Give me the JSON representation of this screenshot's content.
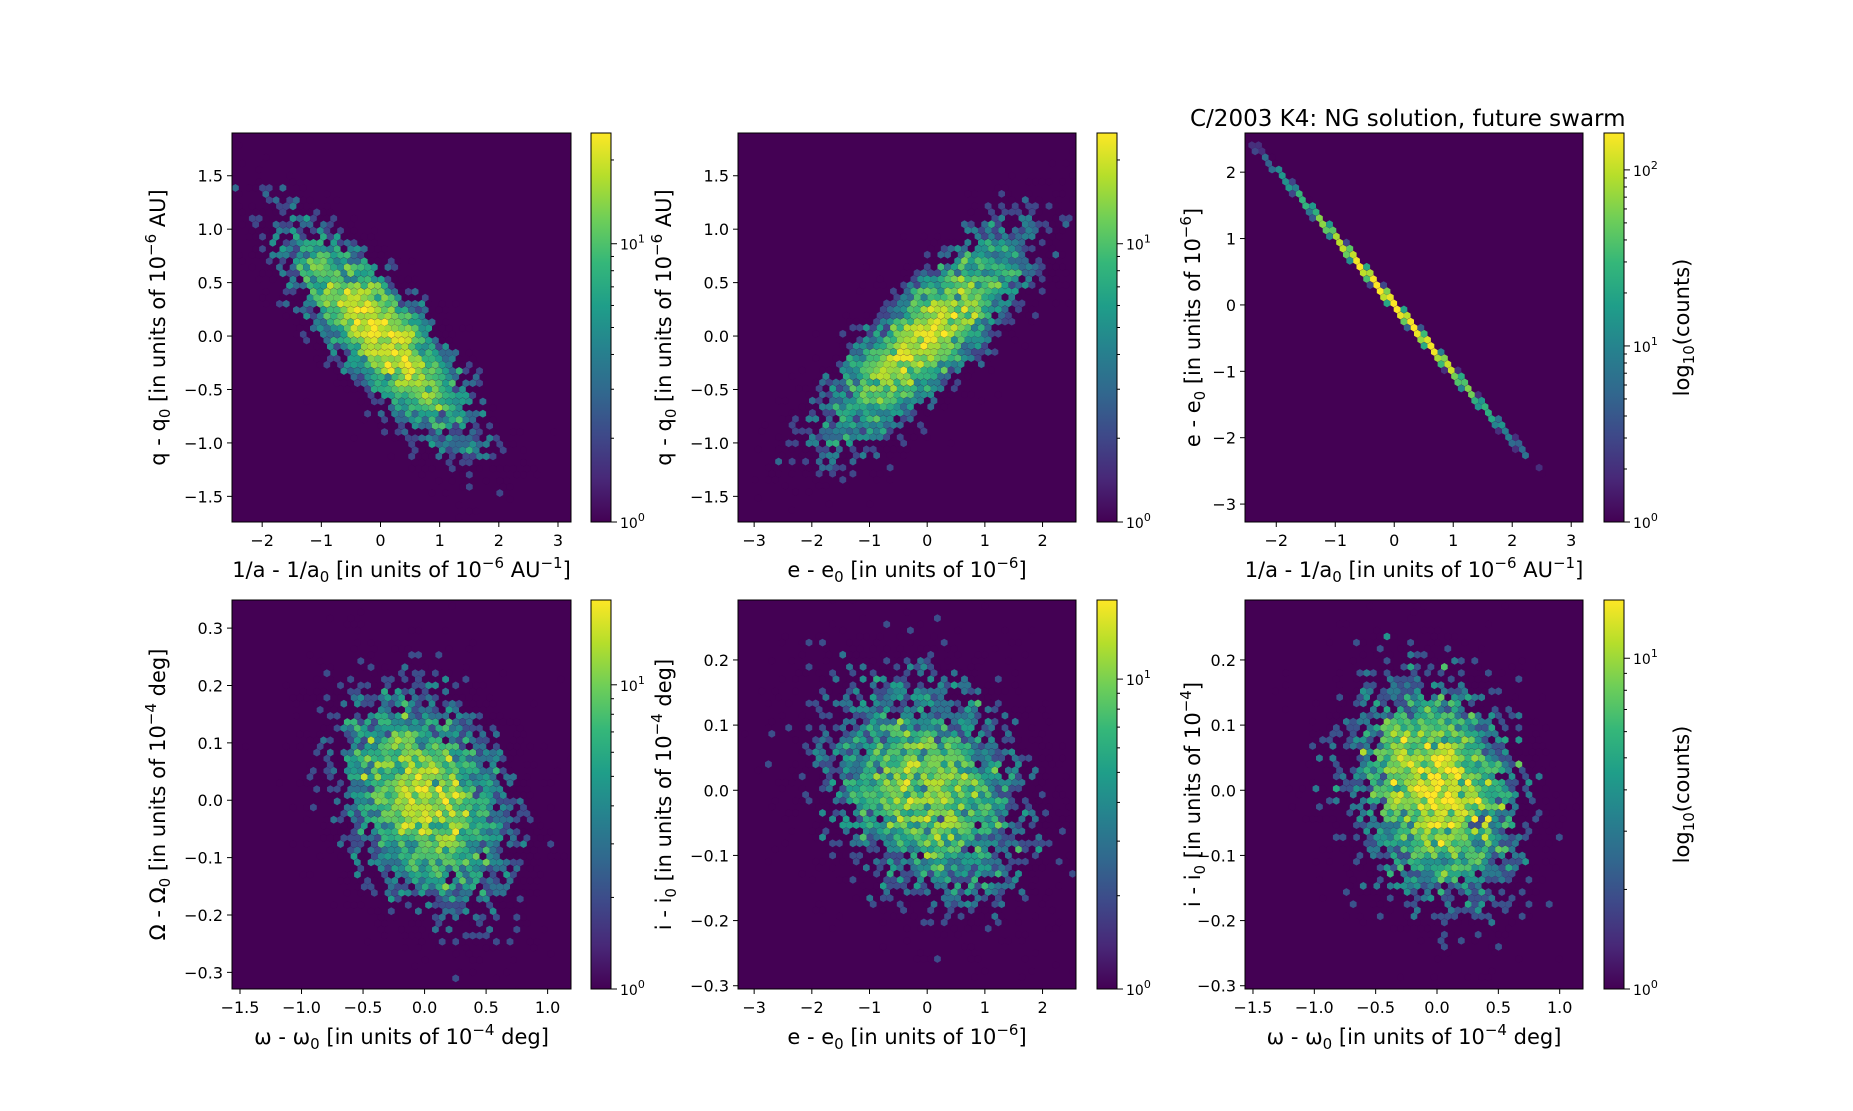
{
  "figure_title": "C/2003 K4:  NG solution, future swarm",
  "chart_data": [
    {
      "type": "hexbin",
      "panel": "top-left",
      "xlabel": {
        "main": "1/a - 1/a",
        "sub": "0",
        "rest": " [in units of 10",
        "sup": "−6",
        "tail": " AU",
        "sup2": "−1",
        "end": "]"
      },
      "ylabel": {
        "main": "q - q",
        "sub": "0",
        "rest": " [in units of 10",
        "sup": "−6",
        "tail": " AU]"
      },
      "xlim": [
        -2.51,
        3.22
      ],
      "ylim": [
        -1.74,
        1.9
      ],
      "xticks": [
        -2,
        -1,
        0,
        1,
        2,
        3
      ],
      "xticklabels": [
        "−2",
        "−1",
        "0",
        "1",
        "2",
        "3"
      ],
      "yticks": [
        -1.5,
        -1.0,
        -0.5,
        0.0,
        0.5,
        1.0,
        1.5
      ],
      "yticklabels": [
        "−1.5",
        "−1.0",
        "−0.5",
        "0.0",
        "0.5",
        "1.0",
        "1.5"
      ],
      "distribution": {
        "mean": [
          0,
          0
        ],
        "sigma": [
          0.8,
          0.52
        ],
        "correlation": -0.82,
        "samples": 5000
      },
      "colorbar": {
        "scale": "log",
        "min": 1,
        "max": 25,
        "ticks": [
          1,
          10
        ],
        "ticklabels": [
          "10^0",
          "10^1"
        ],
        "label": ""
      }
    },
    {
      "type": "hexbin",
      "panel": "top-middle",
      "xlabel": {
        "main": "e - e",
        "sub": "0",
        "rest": " [in units of 10",
        "sup": "−6",
        "end": "]"
      },
      "ylabel": {
        "main": "q - q",
        "sub": "0",
        "rest": " [in units of 10",
        "sup": "−6",
        "tail": " AU]"
      },
      "xlim": [
        -3.28,
        2.58
      ],
      "ylim": [
        -1.74,
        1.9
      ],
      "xticks": [
        -3,
        -2,
        -1,
        0,
        1,
        2
      ],
      "xticklabels": [
        "−3",
        "−2",
        "−1",
        "0",
        "1",
        "2"
      ],
      "yticks": [
        -1.5,
        -1.0,
        -0.5,
        0.0,
        0.5,
        1.0,
        1.5
      ],
      "yticklabels": [
        "−1.5",
        "−1.0",
        "−0.5",
        "0.0",
        "0.5",
        "1.0",
        "1.5"
      ],
      "distribution": {
        "mean": [
          0,
          0
        ],
        "sigma": [
          0.92,
          0.52
        ],
        "correlation": 0.82,
        "samples": 5000
      },
      "colorbar": {
        "scale": "log",
        "min": 1,
        "max": 25,
        "ticks": [
          1,
          10
        ],
        "ticklabels": [
          "10^0",
          "10^1"
        ],
        "label": ""
      }
    },
    {
      "type": "hexbin",
      "panel": "top-right",
      "xlabel": {
        "main": "1/a - 1/a",
        "sub": "0",
        "rest": " [in units of 10",
        "sup": "−6",
        "tail": " AU",
        "sup2": "−1",
        "end": "]"
      },
      "ylabel": {
        "main": "e - e",
        "sub": "0",
        "rest": " [in units of 10",
        "sup": "−6",
        "end": "]"
      },
      "xlim": [
        -2.53,
        3.2
      ],
      "ylim": [
        -3.27,
        2.59
      ],
      "xticks": [
        -2,
        -1,
        0,
        1,
        2,
        3
      ],
      "xticklabels": [
        "−2",
        "−1",
        "0",
        "1",
        "2",
        "3"
      ],
      "yticks": [
        -3,
        -2,
        -1,
        0,
        1,
        2
      ],
      "yticklabels": [
        "−3",
        "−2",
        "−1",
        "0",
        "1",
        "2"
      ],
      "distribution": {
        "line_slope": -1.02,
        "x_range": [
          -2.5,
          2.55
        ],
        "sigma_x": 0.8,
        "samples": 5000
      },
      "colorbar": {
        "scale": "log",
        "min": 1,
        "max": 162,
        "ticks": [
          1,
          10,
          100
        ],
        "ticklabels": [
          "10^0",
          "10^1",
          "10^2"
        ],
        "label": "log10(counts)"
      }
    },
    {
      "type": "hexbin",
      "panel": "bottom-left",
      "xlabel": {
        "main": "ω - ω",
        "sub": "0",
        "rest": " [in units of 10",
        "sup": "−4",
        "tail": " deg]"
      },
      "ylabel": {
        "main": "Ω - Ω",
        "sub": "0",
        "rest": " [in units of 10",
        "sup": "−4",
        "tail": " deg]"
      },
      "xlim": [
        -1.565,
        1.19
      ],
      "ylim": [
        -0.329,
        0.349
      ],
      "xticks": [
        -1.5,
        -1.0,
        -0.5,
        0.0,
        0.5,
        1.0
      ],
      "xticklabels": [
        "−1.5",
        "−1.0",
        "−0.5",
        "0.0",
        "0.5",
        "1.0"
      ],
      "yticks": [
        -0.3,
        -0.2,
        -0.1,
        0.0,
        0.1,
        0.2,
        0.3
      ],
      "yticklabels": [
        "−0.3",
        "−0.2",
        "−0.1",
        "0.0",
        "0.1",
        "0.2",
        "0.3"
      ],
      "distribution": {
        "mean": [
          0,
          0
        ],
        "sigma": [
          0.36,
          0.1
        ],
        "correlation": -0.3,
        "samples": 5000
      },
      "colorbar": {
        "scale": "log",
        "min": 1,
        "max": 19,
        "ticks": [
          1,
          10
        ],
        "ticklabels": [
          "10^0",
          "10^1"
        ],
        "label": ""
      }
    },
    {
      "type": "hexbin",
      "panel": "bottom-middle",
      "xlabel": {
        "main": "e - e",
        "sub": "0",
        "rest": " [in units of 10",
        "sup": "−6",
        "end": "]"
      },
      "ylabel": {
        "main": "i - i",
        "sub": "0",
        "rest": " [in units of 10",
        "sup": "−4",
        "tail": " deg]"
      },
      "xlim": [
        -3.28,
        2.58
      ],
      "ylim": [
        -0.305,
        0.292
      ],
      "xticks": [
        -3,
        -2,
        -1,
        0,
        1,
        2
      ],
      "xticklabels": [
        "−3",
        "−2",
        "−1",
        "0",
        "1",
        "2"
      ],
      "yticks": [
        -0.3,
        -0.2,
        -0.1,
        0.0,
        0.1,
        0.2
      ],
      "yticklabels": [
        "−0.3",
        "−0.2",
        "−0.1",
        "0.0",
        "0.1",
        "0.2"
      ],
      "distribution": {
        "mean": [
          0,
          0
        ],
        "sigma": [
          0.92,
          0.09
        ],
        "correlation": -0.25,
        "samples": 5000
      },
      "colorbar": {
        "scale": "log",
        "min": 1,
        "max": 18,
        "ticks": [
          1,
          10
        ],
        "ticklabels": [
          "10^0",
          "10^1"
        ],
        "label": ""
      }
    },
    {
      "type": "hexbin",
      "panel": "bottom-right",
      "xlabel": {
        "main": "ω - ω",
        "sub": "0",
        "rest": " [in units of 10",
        "sup": "−4",
        "tail": " deg]"
      },
      "ylabel": {
        "main": "i - i",
        "sub": "0",
        "rest": " [in units of 10",
        "sup": "−4",
        "end": "]"
      },
      "xlim": [
        -1.565,
        1.19
      ],
      "ylim": [
        -0.305,
        0.292
      ],
      "xticks": [
        -1.5,
        -1.0,
        -0.5,
        0.0,
        0.5,
        1.0
      ],
      "xticklabels": [
        "−1.5",
        "−1.0",
        "−0.5",
        "0.0",
        "0.5",
        "1.0"
      ],
      "yticks": [
        -0.3,
        -0.2,
        -0.1,
        0.0,
        0.1,
        0.2
      ],
      "yticklabels": [
        "−0.3",
        "−0.2",
        "−0.1",
        "0.0",
        "0.1",
        "0.2"
      ],
      "distribution": {
        "mean": [
          0,
          0
        ],
        "sigma": [
          0.36,
          0.09
        ],
        "correlation": -0.2,
        "samples": 5000
      },
      "colorbar": {
        "scale": "log",
        "min": 1,
        "max": 15,
        "ticks": [
          1,
          10
        ],
        "ticklabels": [
          "10^0",
          "10^1"
        ],
        "label": "log10(counts)"
      }
    }
  ],
  "colors": {
    "background": "#440154",
    "viridis": [
      "#440154",
      "#482878",
      "#3e4989",
      "#31688e",
      "#26828e",
      "#1f9e89",
      "#35b779",
      "#6ece58",
      "#b5de2b",
      "#fde725"
    ]
  }
}
